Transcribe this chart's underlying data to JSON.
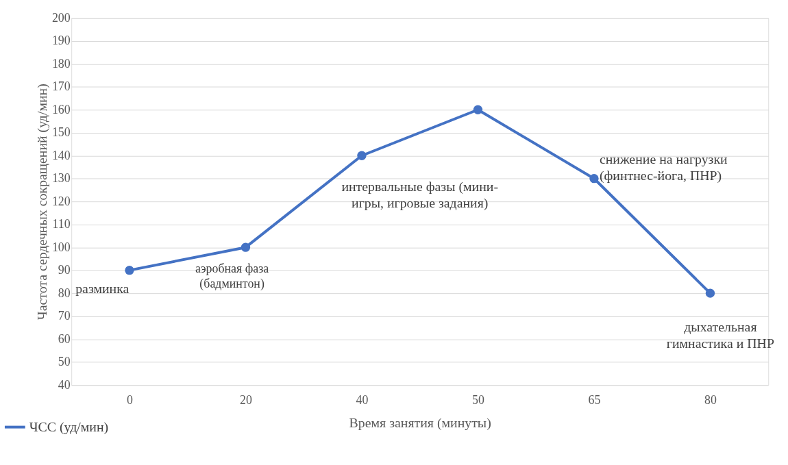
{
  "chart_data": {
    "type": "line",
    "xlabel": "Время занятия (минуты)",
    "ylabel": "Частота сердечных сокращений (уд/мин)",
    "categories": [
      "0",
      "20",
      "40",
      "50",
      "65",
      "80"
    ],
    "series": [
      {
        "name": "ЧСС (уд/мин)",
        "color": "#4472c4",
        "values": [
          90,
          100,
          140,
          160,
          130,
          80
        ]
      }
    ],
    "ylim": [
      40,
      200
    ],
    "yticks": [
      40,
      50,
      60,
      70,
      80,
      90,
      100,
      110,
      120,
      130,
      140,
      150,
      160,
      170,
      180,
      190,
      200
    ],
    "grid": "y",
    "legend": "bottom",
    "marker": "circle",
    "line_style": "solid",
    "annotations": [
      {
        "text": "разминка",
        "x": "0",
        "y": 90
      },
      {
        "text": "аэробная фаза\n(бадминтон)",
        "x": "20",
        "y": 100
      },
      "интервальные фазы (мини-\nигры, игровые задания)",
      {
        "text": "снижение на нагрузки\n(финтнес-йога, ПНР)",
        "x": "65",
        "y": 130
      },
      {
        "text": "дыхательная\nгимнастика и ПНР",
        "x": "80",
        "y": 80
      }
    ]
  }
}
